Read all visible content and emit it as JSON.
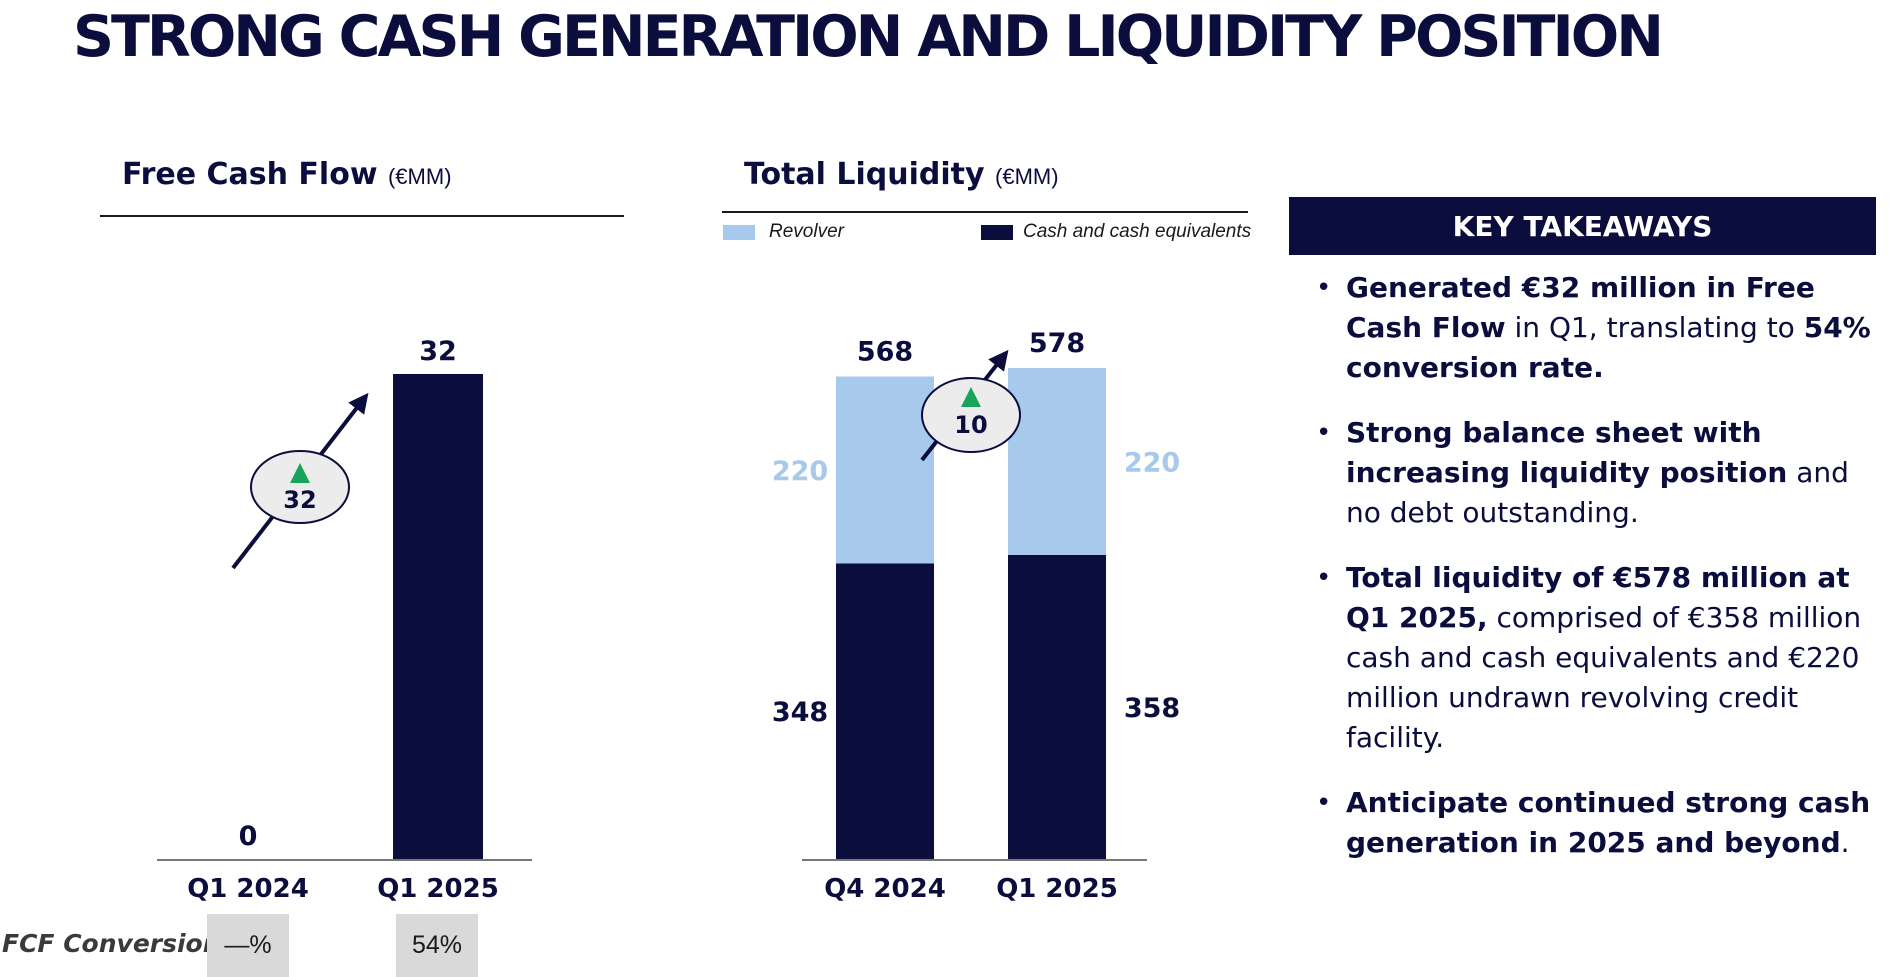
{
  "page_title": "STRONG CASH GENERATION AND LIQUIDITY POSITION",
  "colors": {
    "navy": "#0b0d3d",
    "revolver": "#a7c9ec",
    "up_arrow": "#1aa35a",
    "box_grey": "#d9d9d9"
  },
  "fcf_panel": {
    "title": "Free Cash Flow",
    "unit": "(€MM)",
    "change_badge": "32",
    "conversion_label": "FCF Conversion",
    "conversion_values": [
      "—%",
      "54%"
    ]
  },
  "liquidity_panel": {
    "title": "Total Liquidity",
    "unit": "(€MM)",
    "legend": [
      "Revolver",
      "Cash and cash equivalents"
    ],
    "change_badge": "10"
  },
  "chart_data": [
    {
      "type": "bar",
      "title": "Free Cash Flow (€MM)",
      "categories": [
        "Q1 2024",
        "Q1 2025"
      ],
      "values": [
        0,
        32
      ],
      "data_labels": [
        "0",
        "32"
      ],
      "ylim": [
        0,
        32
      ],
      "grid": false
    },
    {
      "type": "bar",
      "stacked": true,
      "title": "Total Liquidity (€MM)",
      "categories": [
        "Q4 2024",
        "Q1 2025"
      ],
      "series": [
        {
          "name": "Cash and cash equivalents",
          "values": [
            348,
            358
          ],
          "color": "#0b0d3d"
        },
        {
          "name": "Revolver",
          "values": [
            220,
            220
          ],
          "color": "#a7c9ec"
        }
      ],
      "totals": [
        568,
        578
      ],
      "ylim": [
        0,
        578
      ],
      "legend": "top",
      "grid": false
    }
  ],
  "key_takeaways": {
    "heading": "KEY TAKEAWAYS",
    "items": [
      {
        "bold": "Generated €32 million in Free Cash Flow",
        "text1": " in Q1, translating to ",
        "bold2": "54% conversion rate.",
        "text2": ""
      },
      {
        "bold": "Strong balance sheet with increasing  liquidity position",
        "text1": " and no debt outstanding.",
        "bold2": "",
        "text2": ""
      },
      {
        "bold": "Total liquidity of €578 million at Q1 2025,",
        "text1": " comprised of €358 million cash and cash equivalents and €220 million undrawn revolving credit facility.",
        "bold2": "",
        "text2": ""
      },
      {
        "bold": "Anticipate continued strong cash generation in 2025 and beyond",
        "text1": ".",
        "bold2": "",
        "text2": ""
      }
    ]
  }
}
